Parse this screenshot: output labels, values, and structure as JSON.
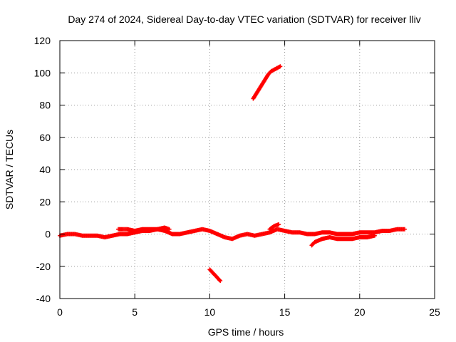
{
  "chart_data": {
    "type": "scatter",
    "title": "Day 274 of 2024, Sidereal Day-to-day VTEC variation (SDTVAR) for receiver lliv",
    "xlabel": "GPS time / hours",
    "ylabel": "SDTVAR / TECUs",
    "xlim": [
      0,
      25
    ],
    "ylim": [
      -40,
      120
    ],
    "xticks": [
      "0",
      "5",
      "10",
      "15",
      "20",
      "25"
    ],
    "yticks": [
      "-40",
      "-20",
      "0",
      "20",
      "40",
      "60",
      "80",
      "100",
      "120"
    ],
    "grid": true,
    "legend": "none",
    "marker": "plus",
    "series_color": "#ff0000",
    "series": [
      {
        "x": [
          0.0,
          0.5,
          1.0,
          1.5,
          2.0,
          2.5,
          3.0,
          3.5,
          4.0,
          4.5,
          5.0,
          5.5,
          6.0,
          6.5,
          7.0,
          7.5,
          8.0,
          8.5,
          9.0,
          9.5,
          10.0,
          10.5,
          11.0,
          11.5,
          12.0,
          12.5,
          13.0,
          13.5,
          14.0,
          14.5,
          15.0,
          15.5,
          16.0,
          16.5,
          17.0,
          17.5,
          18.0,
          18.5,
          19.0,
          19.5,
          20.0,
          20.5,
          21.0,
          21.5,
          22.0,
          22.5,
          23.0
        ],
        "y": [
          -1,
          0,
          0,
          -1,
          -1,
          -1,
          -2,
          -1,
          0,
          0,
          1,
          2,
          2,
          3,
          2,
          0,
          0,
          1,
          2,
          3,
          2,
          0,
          -2,
          -3,
          -1,
          0,
          -1,
          0,
          1,
          3,
          2,
          1,
          1,
          0,
          0,
          1,
          1,
          0,
          0,
          0,
          1,
          1,
          1,
          2,
          2,
          3,
          3
        ]
      },
      {
        "x": [
          3.9,
          4.5,
          5.0,
          5.5,
          6.0,
          6.5,
          7.0,
          7.3
        ],
        "y": [
          3,
          3,
          2,
          3,
          3,
          3,
          4,
          3
        ]
      },
      {
        "x": [
          16.8,
          17.0,
          17.5,
          18.0,
          18.5,
          19.0,
          19.5,
          20.0,
          20.5,
          21.0
        ],
        "y": [
          -7,
          -5,
          -3,
          -2,
          -3,
          -3,
          -3,
          -2,
          -2,
          -1
        ]
      },
      {
        "x": [
          14.0,
          14.3,
          14.6
        ],
        "y": [
          3,
          5,
          6
        ]
      },
      {
        "x": [
          10.0,
          10.2,
          10.4,
          10.6,
          10.7
        ],
        "y": [
          -22,
          -24,
          -26,
          -28,
          -29
        ]
      },
      {
        "x": [
          12.9,
          13.1,
          13.3,
          13.5,
          13.7,
          13.9,
          14.1,
          14.3,
          14.5,
          14.7
        ],
        "y": [
          84,
          87,
          90,
          93,
          96,
          99,
          101,
          102,
          103,
          104
        ]
      }
    ]
  }
}
